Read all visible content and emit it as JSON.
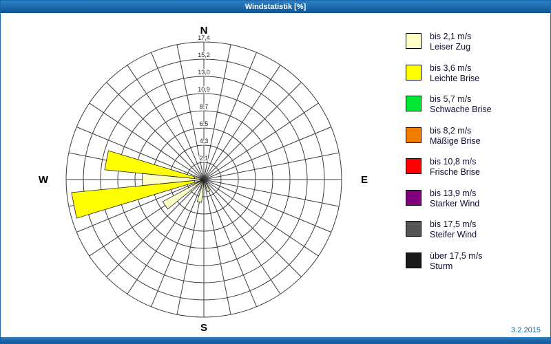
{
  "header": {
    "title": "Windstatistik [%]"
  },
  "footer": {
    "date": "3.2.2015"
  },
  "colors": {
    "frame": "#1766AE",
    "titlebar_top": "#2E80C3",
    "titlebar_bottom": "#0F5494",
    "date_text": "#1465A5",
    "grid_line": "#3c3c3c"
  },
  "chart_data": {
    "type": "windrose",
    "title": "Windstatistik [%]",
    "unit": "%",
    "sectors": 32,
    "max_value": 17.4,
    "ring_values": [
      2.1,
      4.3,
      6.5,
      8.7,
      10.9,
      13.0,
      15.2,
      17.4
    ],
    "ring_labels": [
      "2,1",
      "4,3",
      "6,5",
      "8,7",
      "10,9",
      "13,0",
      "15,2",
      "17,4"
    ],
    "compass": {
      "n": "N",
      "e": "E",
      "s": "S",
      "w": "W"
    },
    "legend_position": "right",
    "speed_classes": [
      {
        "speed": "bis 2,1 m/s",
        "name": "Leiser Zug",
        "color": "#FFFFC8"
      },
      {
        "speed": "bis 3,6 m/s",
        "name": "Leichte Brise",
        "color": "#FFFF00"
      },
      {
        "speed": "bis 5,7 m/s",
        "name": "Schwache Brise",
        "color": "#00E632"
      },
      {
        "speed": "bis 8,2 m/s",
        "name": "Mäßige Brise",
        "color": "#F07D00"
      },
      {
        "speed": "bis 10,8 m/s",
        "name": "Frische Brise",
        "color": "#FF0000"
      },
      {
        "speed": "bis 13,9 m/s",
        "name": "Starker Wind",
        "color": "#800080"
      },
      {
        "speed": "bis 17,5 m/s",
        "name": "Steifer Wind",
        "color": "#555555"
      },
      {
        "speed": "über 17,5 m/s",
        "name": "Sturm",
        "color": "#1A1A1A"
      }
    ],
    "bars": [
      {
        "direction": "WNW",
        "bearing_deg": 281.25,
        "total": 12.6,
        "segments": [
          {
            "class_index": 0,
            "value": 1.2
          },
          {
            "class_index": 1,
            "value": 11.4
          }
        ]
      },
      {
        "direction": "W",
        "bearing_deg": 270.0,
        "total": 7.8,
        "segments": [
          {
            "class_index": 0,
            "value": 7.8
          }
        ]
      },
      {
        "direction": "WSW",
        "bearing_deg": 258.75,
        "total": 16.8,
        "segments": [
          {
            "class_index": 0,
            "value": 1.2
          },
          {
            "class_index": 1,
            "value": 15.6
          }
        ]
      },
      {
        "direction": "SW",
        "bearing_deg": 236.25,
        "total": 5.9,
        "segments": [
          {
            "class_index": 0,
            "value": 5.9
          }
        ]
      },
      {
        "direction": "S",
        "bearing_deg": 191.25,
        "total": 2.9,
        "segments": [
          {
            "class_index": 0,
            "value": 2.9
          }
        ]
      },
      {
        "direction": "SSE",
        "bearing_deg": 157.5,
        "total": 1.6,
        "segments": [
          {
            "class_index": 0,
            "value": 1.6
          }
        ]
      }
    ]
  }
}
